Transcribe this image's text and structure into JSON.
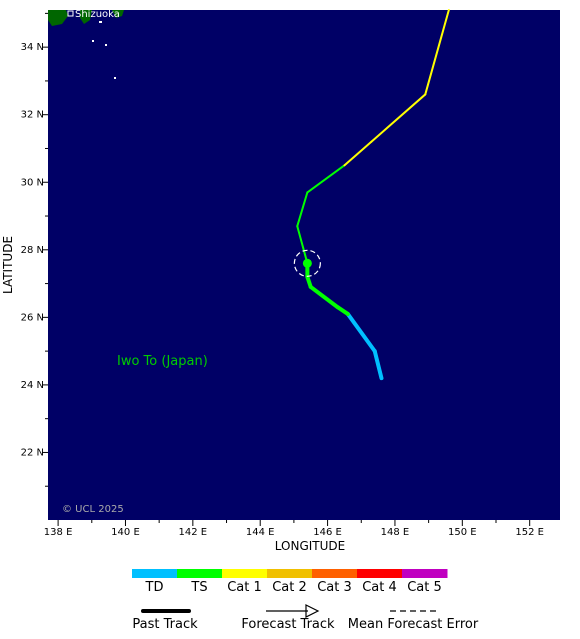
{
  "map": {
    "xaxis_title": "LONGITUDE",
    "yaxis_title": "LATITUDE",
    "lon_ticks": [
      {
        "value": 138,
        "label": "138 E"
      },
      {
        "value": 140,
        "label": "140 E"
      },
      {
        "value": 142,
        "label": "142 E"
      },
      {
        "value": 144,
        "label": "144 E"
      },
      {
        "value": 146,
        "label": "146 E"
      },
      {
        "value": 148,
        "label": "148 E"
      },
      {
        "value": 150,
        "label": "150 E"
      },
      {
        "value": 152,
        "label": "152 E"
      }
    ],
    "lat_ticks": [
      {
        "value": 22,
        "label": "22 N"
      },
      {
        "value": 24,
        "label": "24 N"
      },
      {
        "value": 26,
        "label": "26 N"
      },
      {
        "value": 28,
        "label": "28 N"
      },
      {
        "value": 30,
        "label": "30 N"
      },
      {
        "value": 32,
        "label": "32 N"
      },
      {
        "value": 34,
        "label": "34 N"
      }
    ],
    "copyright": "© UCL 2025",
    "place_labels": [
      {
        "text": "Iwo To (Japan)",
        "lon": 139.8,
        "lat": 24.7,
        "color": "#00cc00"
      },
      {
        "text": "Shizuoka",
        "lon": 140.6,
        "lat": 34.9,
        "color": "#ffffff"
      }
    ],
    "colors": {
      "ocean": "#000066",
      "land": "#006600"
    },
    "past_track": [
      {
        "lon": 147.6,
        "lat": 24.2,
        "cat": "TD"
      },
      {
        "lon": 147.4,
        "lat": 25.0,
        "cat": "TD"
      },
      {
        "lon": 146.6,
        "lat": 26.1,
        "cat": "TD"
      },
      {
        "lon": 146.3,
        "lat": 26.3,
        "cat": "TS"
      },
      {
        "lon": 145.5,
        "lat": 26.9,
        "cat": "TS"
      },
      {
        "lon": 145.4,
        "lat": 27.2,
        "cat": "TS"
      },
      {
        "lon": 145.4,
        "lat": 27.6,
        "cat": "TS"
      }
    ],
    "current_position": {
      "lon": 145.4,
      "lat": 27.6,
      "cat": "TS"
    },
    "forecast_track": [
      {
        "lon": 145.4,
        "lat": 27.6,
        "cat": "TS"
      },
      {
        "lon": 145.1,
        "lat": 28.7,
        "cat": "TS"
      },
      {
        "lon": 145.4,
        "lat": 29.7,
        "cat": "TS"
      },
      {
        "lon": 146.5,
        "lat": 30.5,
        "cat": "TS"
      },
      {
        "lon": 147.3,
        "lat": 31.2,
        "cat": "Cat 1"
      },
      {
        "lon": 148.9,
        "lat": 32.6,
        "cat": "Cat 1"
      },
      {
        "lon": 149.6,
        "lat": 35.1,
        "cat": "Cat 1"
      }
    ]
  },
  "legend": {
    "categories": [
      {
        "label": "TD",
        "color": "#00c0ff"
      },
      {
        "label": "TS",
        "color": "#00ff00"
      },
      {
        "label": "Cat 1",
        "color": "#ffff00"
      },
      {
        "label": "Cat 2",
        "color": "#f0c000"
      },
      {
        "label": "Cat 3",
        "color": "#ff6000"
      },
      {
        "label": "Cat 4",
        "color": "#ff0000"
      },
      {
        "label": "Cat 5",
        "color": "#c000c0"
      }
    ],
    "past_track_label": "Past Track",
    "forecast_track_label": "Forecast Track",
    "mean_error_label": "Mean Forecast Error"
  }
}
